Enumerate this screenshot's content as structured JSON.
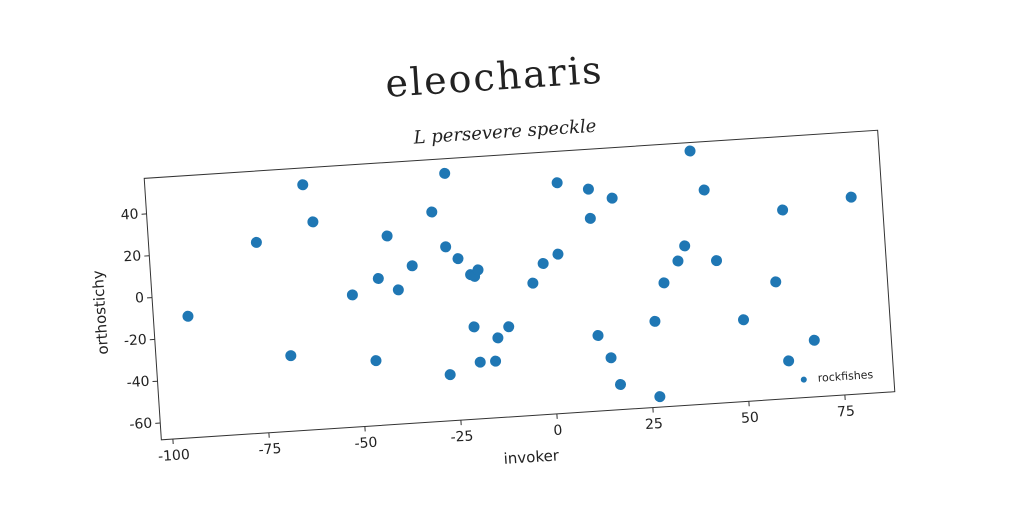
{
  "chart_data": {
    "type": "scatter",
    "title": "eleocharis",
    "subtitle": "L persevere speckle",
    "x_label": "invoker",
    "y_label": "orthostichy",
    "series": [
      {
        "name": "rockfishes",
        "color": "#1f77b4",
        "x": [
          -94,
          -75,
          -62,
          -60,
          -68,
          -51,
          -44,
          -46,
          -41,
          -39,
          -35,
          -29,
          -25,
          -26,
          -27,
          -23,
          -20,
          -19,
          -18,
          -20,
          -19,
          -14,
          -15,
          -11,
          -4,
          -1,
          4,
          3,
          12,
          12,
          12,
          18,
          15,
          17,
          27,
          27,
          30,
          34,
          36,
          39,
          42,
          44,
          50,
          59,
          62,
          61,
          68,
          80
        ],
        "y": [
          -10,
          23,
          49,
          31,
          -32,
          -5,
          2,
          -37,
          22,
          -4,
          7,
          32,
          50,
          15,
          -46,
          9,
          1,
          0,
          3,
          -24,
          -41,
          -30,
          -41,
          -25,
          -5,
          4,
          42,
          8,
          38,
          24,
          -32,
          33,
          -43,
          -56,
          -27,
          -63,
          -9,
          1,
          8,
          53,
          34,
          0,
          -29,
          -12,
          22,
          -50,
          -41,
          26
        ]
      }
    ],
    "xlim": [
      -103,
      88
    ],
    "ylim": [
      -68,
      57
    ],
    "xticks": [
      -100,
      -75,
      -50,
      -25,
      0,
      25,
      50,
      75
    ],
    "yticks": [
      -60,
      -40,
      -20,
      0,
      20,
      40
    ],
    "legend": "lower right"
  }
}
